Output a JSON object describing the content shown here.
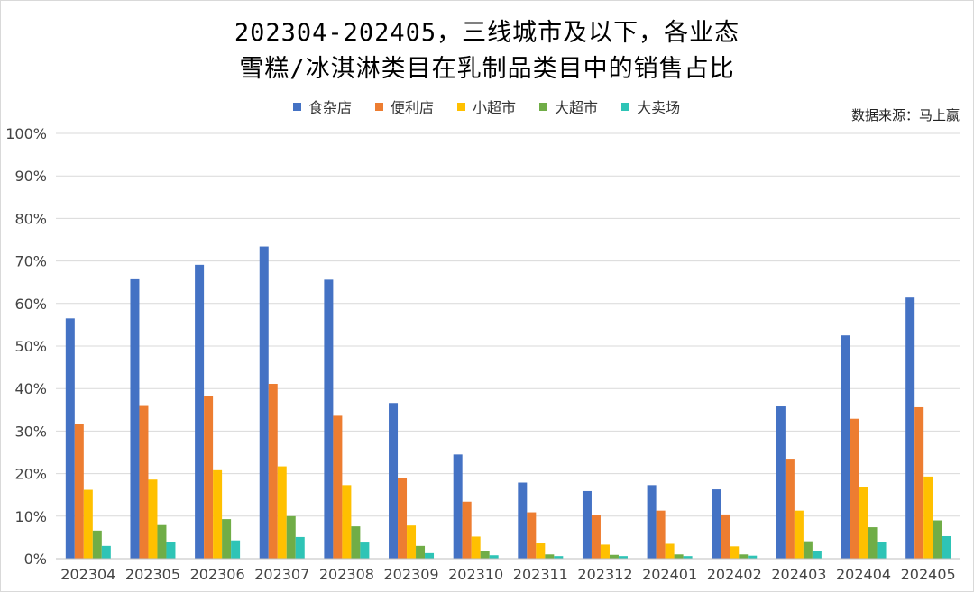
{
  "title_line1": "202304-202405，三线城市及以下，各业态",
  "title_line2": "雪糕/冰淇淋类目在乳制品类目中的销售占比",
  "source": "数据来源：马上赢",
  "chart_data": {
    "type": "bar",
    "title": "202304-202405，三线城市及以下，各业态雪糕/冰淇淋类目在乳制品类目中的销售占比",
    "categories": [
      "202304",
      "202305",
      "202306",
      "202307",
      "202308",
      "202309",
      "202310",
      "202311",
      "202312",
      "202401",
      "202402",
      "202403",
      "202404",
      "202405"
    ],
    "ylim": [
      0,
      100
    ],
    "yticks": [
      "0%",
      "10%",
      "20%",
      "30%",
      "40%",
      "50%",
      "60%",
      "70%",
      "80%",
      "90%",
      "100%"
    ],
    "grid": true,
    "legend_position": "top",
    "series": [
      {
        "name": "食杂店",
        "color": "#4472C4",
        "values": [
          56.5,
          65.7,
          69.1,
          73.4,
          65.6,
          36.6,
          24.5,
          17.9,
          15.9,
          17.3,
          16.3,
          35.8,
          52.5,
          61.4
        ]
      },
      {
        "name": "便利店",
        "color": "#ED7D31",
        "values": [
          31.6,
          35.9,
          38.2,
          41.1,
          33.6,
          18.9,
          13.4,
          10.9,
          10.2,
          11.3,
          10.4,
          23.5,
          32.9,
          35.6
        ]
      },
      {
        "name": "小超市",
        "color": "#FFC000",
        "values": [
          16.2,
          18.6,
          20.8,
          21.7,
          17.3,
          7.8,
          5.2,
          3.6,
          3.3,
          3.5,
          2.9,
          11.3,
          16.8,
          19.3
        ]
      },
      {
        "name": "大超市",
        "color": "#70AD47",
        "values": [
          6.6,
          7.9,
          9.3,
          10.0,
          7.6,
          3.0,
          1.8,
          1.0,
          0.9,
          1.0,
          1.0,
          4.1,
          7.4,
          9.0
        ]
      },
      {
        "name": "大卖场",
        "color": "#2EC4B6",
        "values": [
          3.0,
          3.9,
          4.3,
          5.1,
          3.8,
          1.3,
          0.8,
          0.6,
          0.6,
          0.6,
          0.7,
          1.9,
          3.9,
          5.3
        ]
      }
    ]
  }
}
